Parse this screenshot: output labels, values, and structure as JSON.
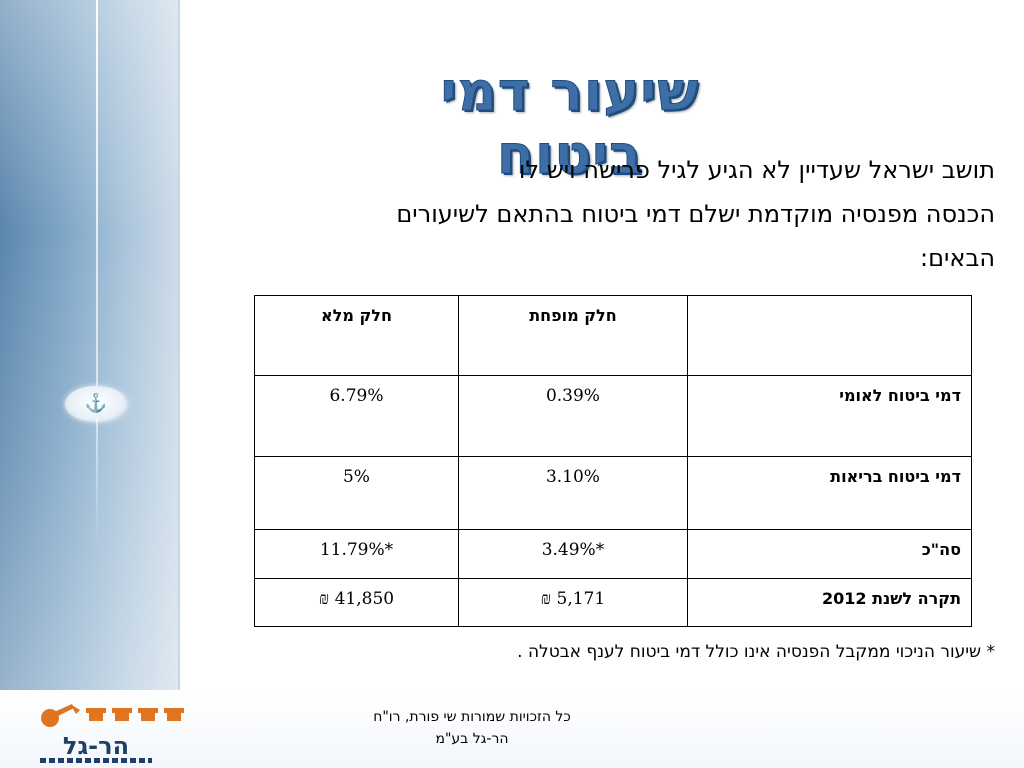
{
  "slide": {
    "title": "שיעור דמי ביטוח",
    "intro": [
      "תושב ישראל שעדיין לא הגיע לגיל פרישה ויש לו",
      "הכנסה מפנסיה מוקדמת ישלם דמי ביטוח בהתאם לשיעורים",
      "הבאים:"
    ],
    "footnote": "* שיעור הניכוי ממקבל הפנסיה אינו כולל דמי ביטוח לענף אבטלה .",
    "copyright": [
      "כל הזכויות שמורות  שי פורת, רו\"ח",
      "הר-גל בע\"מ"
    ]
  },
  "table": {
    "headers": {
      "label": "",
      "reduced": "חלק מופחת",
      "full": "חלק מלא"
    },
    "rows": [
      {
        "label": "דמי ביטוח לאומי",
        "reduced": "0.39%",
        "full": "6.79%"
      },
      {
        "label": "דמי ביטוח בריאות",
        "reduced": "3.10%",
        "full": "5%"
      },
      {
        "label": "סה\"כ",
        "reduced": "*3.49%",
        "full": "*11.79%"
      },
      {
        "label": "תקרה לשנת 2012",
        "reduced": "5,171 ₪",
        "full": "41,850 ₪"
      }
    ]
  },
  "logo": {
    "name": "הר-גל",
    "icon": "har-gal-logo-icon"
  },
  "colors": {
    "title_fill": "#3d6fa6",
    "title_stroke": "#1f4d80",
    "band_blue": "#5a86ad",
    "logo_orange": "#e0741f",
    "logo_navy": "#1e3f6a"
  }
}
